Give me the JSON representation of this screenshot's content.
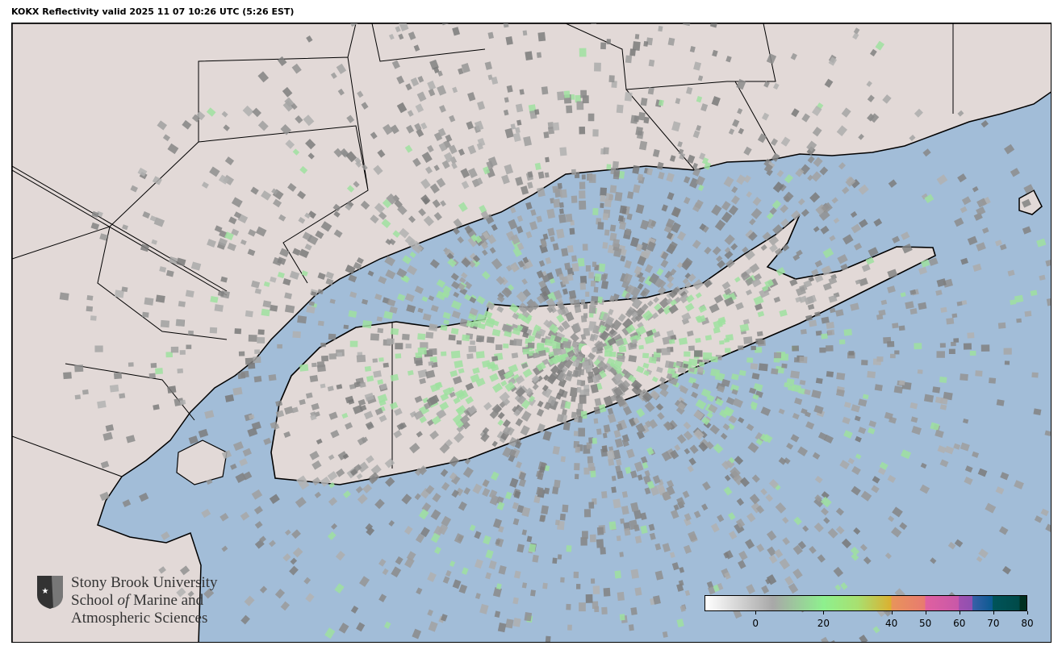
{
  "title": "KOKX Reflectivity valid 2025 11 07 10:26 UTC (5:26 EST)",
  "colors": {
    "land": "#e2d9d7",
    "water": "#a2bdd8",
    "boundary": "#000000"
  },
  "radar_site": "KOKX",
  "logo": {
    "line1": "Stony Brook University",
    "line2_a": "School ",
    "line2_b": "of",
    "line2_c": " Marine and",
    "line3": "Atmospheric Sciences"
  },
  "colorbar": {
    "unit_range": [
      -15,
      80
    ],
    "ticks": [
      "0",
      "20",
      "40",
      "50",
      "60",
      "70",
      "80"
    ],
    "stops": [
      {
        "v": -15,
        "c": "#ffffff"
      },
      {
        "v": 5,
        "c": "#a8a8a8"
      },
      {
        "v": 20,
        "c": "#8ef08e"
      },
      {
        "v": 30,
        "c": "#a8e070"
      },
      {
        "v": 40,
        "c": "#dcb030"
      },
      {
        "v": 40.01,
        "c": "#e8945a"
      },
      {
        "v": 50,
        "c": "#e87a70"
      },
      {
        "v": 50.01,
        "c": "#e060a0"
      },
      {
        "v": 60,
        "c": "#c858a8"
      },
      {
        "v": 60.01,
        "c": "#a050b0"
      },
      {
        "v": 64,
        "c": "#9050b0"
      },
      {
        "v": 64.01,
        "c": "#3860a8"
      },
      {
        "v": 70,
        "c": "#0a5a90"
      },
      {
        "v": 70.01,
        "c": "#00545a"
      },
      {
        "v": 78,
        "c": "#004a48"
      },
      {
        "v": 78.01,
        "c": "#003020"
      },
      {
        "v": 80,
        "c": "#003020"
      }
    ]
  }
}
